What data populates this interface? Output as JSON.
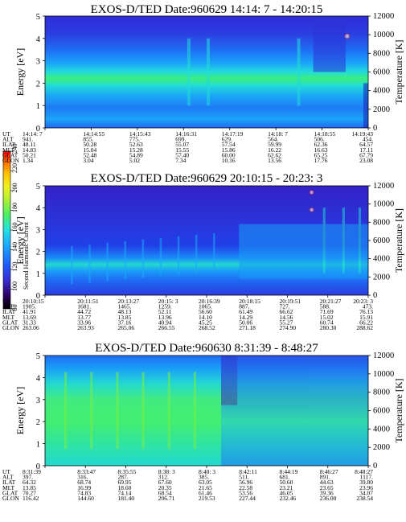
{
  "chart_data": [
    {
      "type": "heatmap",
      "title": "EXOS-D/TED   Date:960629  14:14: 7 - 14:20:15",
      "ylabel": "Energy [eV]",
      "ylabel_right": "Temperature [K]",
      "ylim": [
        0,
        5
      ],
      "ylim_right": [
        0,
        12000
      ],
      "yticks": [
        "0",
        "1",
        "2",
        "3",
        "4",
        "5"
      ],
      "yticks_right": [
        "0",
        "2000",
        "4000",
        "6000",
        "8000",
        "10000",
        "12000"
      ],
      "ephemeris_labels": [
        "UT",
        "ALT",
        "ILAT",
        "MLT",
        "GLAT",
        "GLON"
      ],
      "columns": [
        {
          "UT": "14:14: 7",
          "ALT": "941.",
          "ILAT": "48.11",
          "MLT": "14.83",
          "GLAT": "50.21",
          "GLON": "1.34"
        },
        {
          "UT": "14:14:55",
          "ALT": "855.",
          "ILAT": "50.28",
          "MLT": "15.04",
          "GLAT": "52.48",
          "GLON": "3.04"
        },
        {
          "UT": "14:15:43",
          "ALT": "775.",
          "ILAT": "52.63",
          "MLT": "15.28",
          "GLAT": "54.89",
          "GLON": "5.02"
        },
        {
          "UT": "14:16:31",
          "ALT": "699.",
          "ILAT": "55.07",
          "MLT": "15.55",
          "GLAT": "57.40",
          "GLON": "7.34"
        },
        {
          "UT": "14:17:19",
          "ALT": "629.",
          "ILAT": "57.54",
          "MLT": "15.86",
          "GLAT": "60.00",
          "GLON": "10.16"
        },
        {
          "UT": "14:18: 7",
          "ALT": "564.",
          "ILAT": "59.99",
          "MLT": "16.22",
          "GLAT": "62.62",
          "GLON": "13.56"
        },
        {
          "UT": "14:18:55",
          "ALT": "506.",
          "ILAT": "62.36",
          "MLT": "16.63",
          "GLAT": "65.25",
          "GLON": "17.76"
        },
        {
          "UT": "14:19:43",
          "ALT": "454.",
          "ILAT": "64.57",
          "MLT": "17.11",
          "GLAT": "67.79",
          "GLON": "23.08"
        }
      ]
    },
    {
      "type": "heatmap",
      "title": "EXOS-D/TED   Date:960629  20:10:15 - 20:23: 3",
      "ylabel": "Energy [eV]",
      "ylabel_right": "Temperature [K]",
      "ylim": [
        0,
        5
      ],
      "ylim_right": [
        0,
        12000
      ],
      "yticks": [
        "0",
        "1",
        "2",
        "3",
        "4",
        "5"
      ],
      "yticks_right": [
        "0",
        "2000",
        "4000",
        "6000",
        "8000",
        "10000",
        "12000"
      ],
      "ephemeris_labels": [
        "UT",
        "ALT",
        "ILAT",
        "MLT",
        "GLAT",
        "GLON"
      ],
      "columns": [
        {
          "UT": "20:10:15",
          "ALT": "1905.",
          "ILAT": "41.91",
          "MLT": "13.69",
          "GLAT": "31.33",
          "GLON": "263.06"
        },
        {
          "UT": "20:11:51",
          "ALT": "1681.",
          "ILAT": "44.72",
          "MLT": "13.77",
          "GLAT": "33.96",
          "GLON": "263.93"
        },
        {
          "UT": "20:13:27",
          "ALT": "1465.",
          "ILAT": "48.13",
          "MLT": "13.85",
          "GLAT": "37.16",
          "GLON": "265.06"
        },
        {
          "UT": "20:15: 3",
          "ALT": "1259.",
          "ILAT": "52.11",
          "MLT": "13.96",
          "GLAT": "40.94",
          "GLON": "266.55"
        },
        {
          "UT": "20:16:39",
          "ALT": "1065.",
          "ILAT": "56.60",
          "MLT": "14.10",
          "GLAT": "45.25",
          "GLON": "268.52"
        },
        {
          "UT": "20:18:15",
          "ALT": "887.",
          "ILAT": "61.49",
          "MLT": "14.29",
          "GLAT": "50.06",
          "GLON": "271.18"
        },
        {
          "UT": "20:19:51",
          "ALT": "727.",
          "ILAT": "66.62",
          "MLT": "14.56",
          "GLAT": "55.27",
          "GLON": "274.90"
        },
        {
          "UT": "20:21:27",
          "ALT": "588.",
          "ILAT": "71.69",
          "MLT": "15.02",
          "GLAT": "60.74",
          "GLON": "280.30"
        },
        {
          "UT": "20:23: 3",
          "ALT": "473.",
          "ILAT": "76.13",
          "MLT": "15.91",
          "GLAT": "66.22",
          "GLON": "288.62"
        }
      ]
    },
    {
      "type": "heatmap",
      "title": "EXOS-D/TED   Date:960630   8:31:39 - 8:48:27",
      "ylabel": "Energy [eV]",
      "ylabel_right": "Temperature [K]",
      "ylim": [
        0,
        5
      ],
      "ylim_right": [
        0,
        12000
      ],
      "yticks": [
        "0",
        "1",
        "2",
        "3",
        "4",
        "5"
      ],
      "yticks_right": [
        "0",
        "2000",
        "4000",
        "6000",
        "8000",
        "10000",
        "12000"
      ],
      "ephemeris_labels": [
        "UT",
        "ALT",
        "ILAT",
        "MLT",
        "GLAT",
        "GLON"
      ],
      "columns": [
        {
          "UT": "8:31:39",
          "ALT": "397.",
          "ILAT": "64.32",
          "MLT": "13.85",
          "GLAT": "70.27",
          "GLON": "116.42"
        },
        {
          "UT": "8:33:47",
          "ALT": "316.",
          "ILAT": "68.74",
          "MLT": "16.99",
          "GLAT": "74.83",
          "GLON": "144.60"
        },
        {
          "UT": "8:35:55",
          "ALT": "287.",
          "ILAT": "69.95",
          "MLT": "18.60",
          "GLAT": "74.14",
          "GLON": "181.40"
        },
        {
          "UT": "8:38: 3",
          "ALT": "312.",
          "ILAT": "67.60",
          "MLT": "20.35",
          "GLAT": "68.54",
          "GLON": "206.71"
        },
        {
          "UT": "8:40: 3",
          "ALT": "385.",
          "ILAT": "63.05",
          "MLT": "21.65",
          "GLAT": "61.46",
          "GLON": "219.53"
        },
        {
          "UT": "8:42:11",
          "ALT": "511.",
          "ILAT": "56.96",
          "MLT": "22.58",
          "GLAT": "53.56",
          "GLON": "227.44"
        },
        {
          "UT": "8:44:19",
          "ALT": "681.",
          "ILAT": "50.60",
          "MLT": "23.21",
          "GLAT": "46.05",
          "GLON": "232.46"
        },
        {
          "UT": "8:46:27",
          "ALT": "891.",
          "ILAT": "44.63",
          "MLT": "23.65",
          "GLAT": "39.36",
          "GLON": "236.00"
        },
        {
          "UT": "8:48:27",
          "ALT": "1117.",
          "ILAT": "39.80",
          "MLT": "23.96",
          "GLAT": "34.07",
          "GLON": "238.54"
        }
      ]
    }
  ],
  "colorbar": {
    "label": "Second Harmonic Current",
    "ticks": [
      "80",
      "100",
      "120",
      "140",
      "160",
      "180",
      "200",
      "220",
      "240"
    ],
    "colors": [
      "#000000",
      "#2a0060",
      "#3a2ad0",
      "#1f5cff",
      "#1aa8ff",
      "#22e0e0",
      "#4cf060",
      "#b8f030",
      "#f0f020",
      "#ffc000",
      "#ff6000",
      "#ff0000"
    ]
  }
}
